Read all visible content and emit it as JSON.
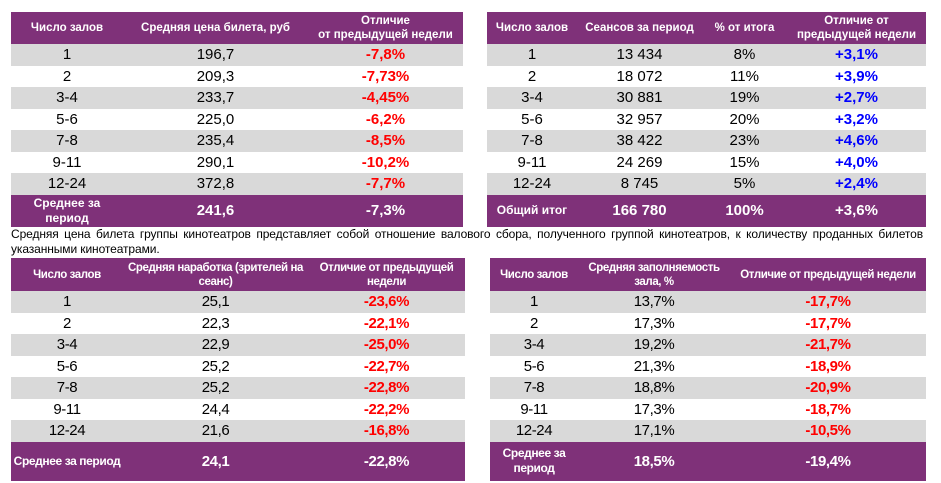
{
  "colors": {
    "header_bg": "#7f3179",
    "row_alt_bg": "#d9d9d9",
    "negative": "#ff0000",
    "positive": "#0000ff"
  },
  "tables": [
    {
      "headers": [
        "Число залов",
        "Средняя цена билета, руб",
        "Отличие\nот предыдущей недели"
      ],
      "rows": [
        [
          "1",
          "196,7",
          "-7,8%"
        ],
        [
          "2",
          "209,3",
          "-7,73%"
        ],
        [
          "3-4",
          "233,7",
          "-4,45%"
        ],
        [
          "5-6",
          "225,0",
          "-6,2%"
        ],
        [
          "7-8",
          "235,4",
          "-8,5%"
        ],
        [
          "9-11",
          "290,1",
          "-10,2%"
        ],
        [
          "12-24",
          "372,8",
          "-7,7%"
        ]
      ],
      "footer": [
        "Среднее за период",
        "241,6",
        "-7,3%"
      ]
    },
    {
      "headers": [
        "Число залов",
        "Сеансов за период",
        "% от итога",
        "Отличие от предыдущей недели"
      ],
      "rows": [
        [
          "1",
          "13 434",
          "8%",
          "+3,1%"
        ],
        [
          "2",
          "18 072",
          "11%",
          "+3,9%"
        ],
        [
          "3-4",
          "30 881",
          "19%",
          "+2,7%"
        ],
        [
          "5-6",
          "32 957",
          "20%",
          "+3,2%"
        ],
        [
          "7-8",
          "38 422",
          "23%",
          "+4,6%"
        ],
        [
          "9-11",
          "24 269",
          "15%",
          "+4,0%"
        ],
        [
          "12-24",
          "8 745",
          "5%",
          "+2,4%"
        ]
      ],
      "footer": [
        "Общий итог",
        "166 780",
        "100%",
        "+3,6%"
      ]
    },
    {
      "headers": [
        "Число залов",
        "Средняя наработка (зрителей на сеанс)",
        "Отличие от предыдущей недели"
      ],
      "rows": [
        [
          "1",
          "25,1",
          "-23,6%"
        ],
        [
          "2",
          "22,3",
          "-22,1%"
        ],
        [
          "3-4",
          "22,9",
          "-25,0%"
        ],
        [
          "5-6",
          "25,2",
          "-22,7%"
        ],
        [
          "7-8",
          "25,2",
          "-22,8%"
        ],
        [
          "9-11",
          "24,4",
          "-22,2%"
        ],
        [
          "12-24",
          "21,6",
          "-16,8%"
        ]
      ],
      "footer": [
        "Среднее за период",
        "24,1",
        "-22,8%"
      ]
    },
    {
      "headers": [
        "Число залов",
        "Средняя заполняемость зала, %",
        "Отличие от предыдущей недели"
      ],
      "rows": [
        [
          "1",
          "13,7%",
          "-17,7%"
        ],
        [
          "2",
          "17,3%",
          "-17,7%"
        ],
        [
          "3-4",
          "19,2%",
          "-21,7%"
        ],
        [
          "5-6",
          "21,3%",
          "-18,9%"
        ],
        [
          "7-8",
          "18,8%",
          "-20,9%"
        ],
        [
          "9-11",
          "17,3%",
          "-18,7%"
        ],
        [
          "12-24",
          "17,1%",
          "-10,5%"
        ]
      ],
      "footer": [
        "Среднее за период",
        "18,5%",
        "-19,4%"
      ]
    }
  ],
  "note": "Средняя цена билета группы кинотеатров представляет собой отношение валового сбора, полученного группой кинотеатров, к количеству проданных билетов указанными кинотеатрами."
}
